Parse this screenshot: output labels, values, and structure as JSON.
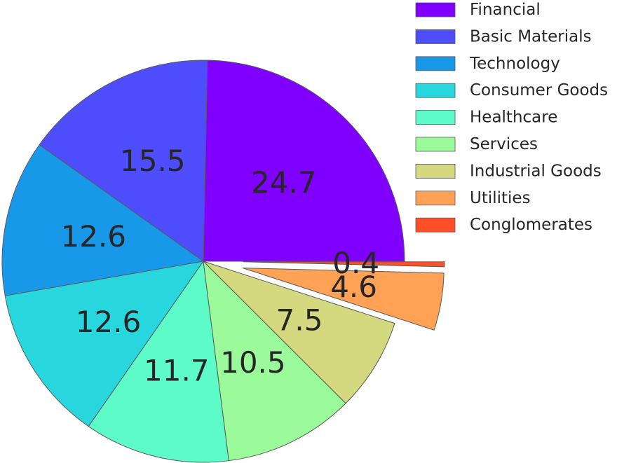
{
  "chart_data": {
    "type": "pie",
    "title": "",
    "categories": [
      "Financial",
      "Basic Materials",
      "Technology",
      "Consumer Goods",
      "Healthcare",
      "Services",
      "Industrial Goods",
      "Utilities",
      "Conglomerates"
    ],
    "values": [
      24.7,
      15.5,
      12.6,
      12.6,
      11.7,
      10.5,
      7.5,
      4.6,
      0.4
    ],
    "data_labels": [
      "24.7",
      "15.5",
      "12.6",
      "12.6",
      "11.7",
      "10.5",
      "7.5",
      "4.6",
      "0.4"
    ],
    "exploded": [
      "Utilities",
      "Conglomerates"
    ],
    "colors": [
      "#8000ff",
      "#4d4dfc",
      "#1898e8",
      "#27d7dd",
      "#5dfbc7",
      "#9bfb9b",
      "#d4d97f",
      "#ffa256",
      "#ff4f28"
    ],
    "legend_position": "top-right",
    "start_angle": "0 degrees (3 o'clock), counter-clockwise"
  }
}
